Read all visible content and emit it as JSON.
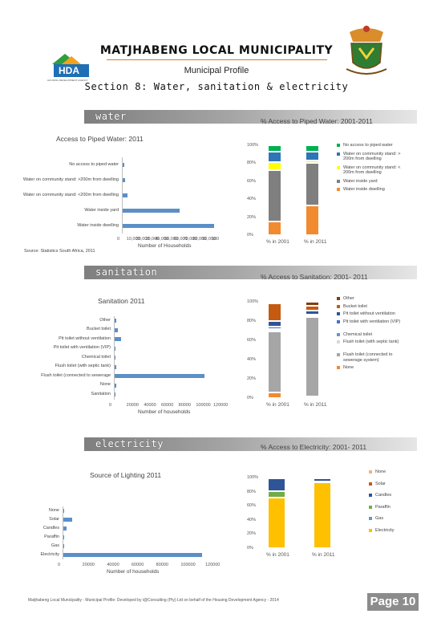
{
  "header": {
    "title": "MATJHABENG LOCAL MUNICIPALITY",
    "subtitle": "Municipal Profile",
    "section": "Section 8: Water, sanitation & electricity",
    "logo_text": "HDA",
    "logo_tagline": "HOUSING DEVELOPMENT AGENCY"
  },
  "water": {
    "band_label": "water",
    "bar_title": "Access to Piped Water: 2011",
    "stack_title": "% Access to Piped Water: 2001-2011",
    "source": "Source: Statistics South Africa, 2011",
    "bar_axis_title": "Number of Households",
    "bar_ticks": [
      "0",
      "10,000",
      "20,000",
      "30,000",
      "40,000",
      "50,000",
      "60,000",
      "70,000",
      "80,000",
      "90,000",
      "100"
    ]
  },
  "sanitation": {
    "band_label": "sanitation",
    "bar_title": "Sanitation 2011",
    "stack_title": "% Access to Sanitation: 2001- 2011",
    "bar_axis_title": "Number of households",
    "bar_ticks": [
      "0",
      "20000",
      "40000",
      "60000",
      "80000",
      "100000",
      "120000"
    ]
  },
  "electricity": {
    "band_label": "electricity",
    "bar_title": "Source of Lighting 2011",
    "stack_title": "% Access to Electricity: 2001- 2011",
    "bar_axis_title": "Number of households",
    "bar_ticks": [
      "0",
      "20000",
      "40000",
      "60000",
      "80000",
      "100000",
      "120000"
    ]
  },
  "stack_ticks": [
    "100%",
    "80%",
    "60%",
    "40%",
    "20%",
    "0%"
  ],
  "footer": "Matjhabeng Local Municipality - Municipal Profile: Developed by i@Consulting (Pty) Ltd on behalf of the Housing Development Agency - 2014",
  "page_label": "Page 10",
  "chart_data": [
    {
      "type": "bar",
      "title": "Access to Piped Water: 2011",
      "orientation": "horizontal",
      "categories": [
        "No access to piped water",
        "Water on community stand: >200m from dwelling",
        "Water on community stand: <200m from dwelling",
        "Water inside yard",
        "Water inside dwelling"
      ],
      "values": [
        2000,
        2500,
        5000,
        60000,
        97000
      ],
      "xlabel": "Number of Households",
      "xlim": [
        0,
        100000
      ],
      "color": "#5b8fc7"
    },
    {
      "type": "bar",
      "stacked": true,
      "title": "% Access to Piped Water: 2001-2011",
      "categories": [
        "% in 2001",
        "% in 2011"
      ],
      "series": [
        {
          "name": "Water inside dwelling",
          "values": [
            15,
            33
          ],
          "color": "#f28a30"
        },
        {
          "name": "Water inside yard",
          "values": [
            57,
            47
          ],
          "color": "#7f7f7f"
        },
        {
          "name": "Water on community stand: < 200m from dwelling",
          "values": [
            9,
            3
          ],
          "color": "#ffff00"
        },
        {
          "name": "Water on community stand: > 200m from dwelling",
          "values": [
            12,
            10
          ],
          "color": "#2e75b6"
        },
        {
          "name": "No access to piped water",
          "values": [
            7,
            7
          ],
          "color": "#00b050"
        }
      ],
      "ylim": [
        0,
        100
      ]
    },
    {
      "type": "bar",
      "title": "Sanitation 2011",
      "orientation": "horizontal",
      "categories": [
        "Other",
        "Bucket toilet",
        "Pit toilet without ventilation",
        "Pit toilet with ventilation (VIP)",
        "Chemical toilet",
        "Flush toilet (with septic tank)",
        "Flush toilet (connected to sewerage",
        "None",
        "Sanitation"
      ],
      "values": [
        2000,
        3500,
        8000,
        1000,
        800,
        1500,
        112000,
        1500,
        0
      ],
      "xlabel": "Number of households",
      "xlim": [
        0,
        130000
      ],
      "color": "#5b8fc7"
    },
    {
      "type": "bar",
      "stacked": true,
      "title": "% Access to Sanitation: 2001- 2011",
      "categories": [
        "% in 2001",
        "% in 2011"
      ],
      "series": [
        {
          "name": "None",
          "values": [
            6,
            2
          ],
          "color": "#f28a30"
        },
        {
          "name": "Flush toilet (connected to sewerage system)",
          "values": [
            63,
            82
          ],
          "color": "#a6a6a6"
        },
        {
          "name": "Flush toilet (with septic tank)",
          "values": [
            2,
            1
          ],
          "color": "#d9d9d9"
        },
        {
          "name": "Chemical toilet",
          "values": [
            1,
            1
          ],
          "color": "#5b9bd5"
        },
        {
          "name": "Pit toilet with ventilation (VIP)",
          "values": [
            2,
            1
          ],
          "color": "#4472c4"
        },
        {
          "name": "Pit toilet without ventilation",
          "values": [
            6,
            4
          ],
          "color": "#2f5597"
        },
        {
          "name": "Bucket toilet",
          "values": [
            18,
            5
          ],
          "color": "#c55a11"
        },
        {
          "name": "Other",
          "values": [
            2,
            4
          ],
          "color": "#843c0c"
        }
      ],
      "ylim": [
        0,
        100
      ]
    },
    {
      "type": "bar",
      "title": "Source of Lighting 2011",
      "orientation": "horizontal",
      "categories": [
        "None",
        "Solar",
        "Candles",
        "Paraffin",
        "Gas",
        "Electricity"
      ],
      "values": [
        500,
        8000,
        3000,
        500,
        300,
        122000
      ],
      "xlabel": "Number of households",
      "xlim": [
        0,
        130000
      ],
      "color": "#5b8fc7"
    },
    {
      "type": "bar",
      "stacked": true,
      "title": "% Access to Electricity: 2001- 2011",
      "categories": [
        "% in 2001",
        "% in 2011"
      ],
      "series": [
        {
          "name": "Electricity",
          "values": [
            72,
            93
          ],
          "color": "#ffc000"
        },
        {
          "name": "Gas",
          "values": [
            0,
            0
          ],
          "color": "#5b9bd5"
        },
        {
          "name": "Paraffin",
          "values": [
            9,
            1
          ],
          "color": "#70ad47"
        },
        {
          "name": "Candles",
          "values": [
            18,
            5
          ],
          "color": "#2f5597"
        },
        {
          "name": "Solar",
          "values": [
            0,
            0
          ],
          "color": "#c55a11"
        },
        {
          "name": "None",
          "values": [
            1,
            1
          ],
          "color": "#f4b183"
        }
      ],
      "ylim": [
        0,
        100
      ]
    }
  ]
}
